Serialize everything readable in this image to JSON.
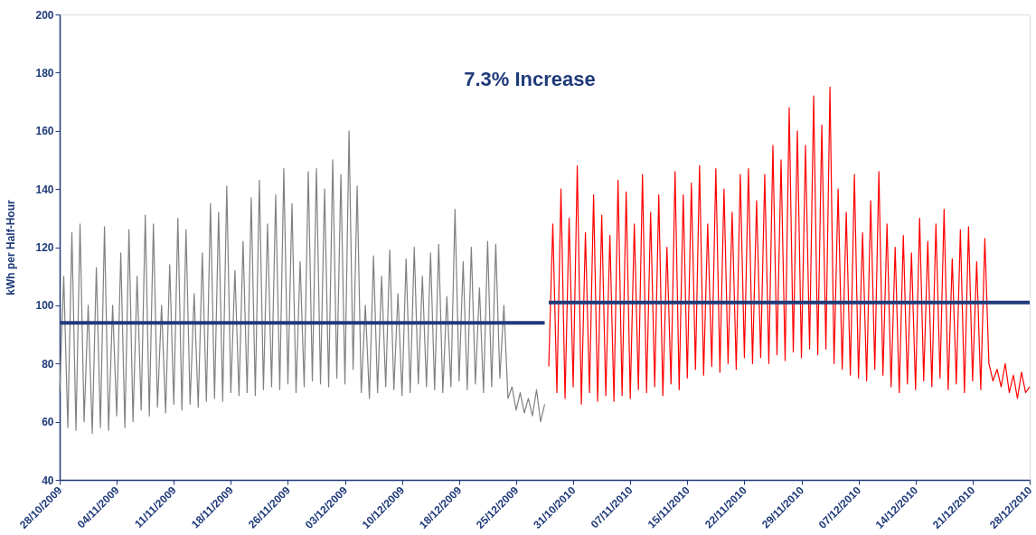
{
  "chart_data": {
    "type": "line",
    "ylabel": "kWh per Half-Hour",
    "annotations": [
      "7.3% Increase"
    ],
    "categories": [
      "28/10/2009",
      null,
      null,
      null,
      null,
      null,
      null,
      null,
      null,
      null,
      null,
      null,
      null,
      null,
      "04/11/2009",
      null,
      null,
      null,
      null,
      null,
      null,
      null,
      null,
      null,
      null,
      null,
      null,
      null,
      "11/11/2009",
      null,
      null,
      null,
      null,
      null,
      null,
      null,
      null,
      null,
      null,
      null,
      null,
      null,
      "18/11/2009",
      null,
      null,
      null,
      null,
      null,
      null,
      null,
      null,
      null,
      null,
      null,
      null,
      null,
      "26/11/2009",
      null,
      null,
      null,
      null,
      null,
      null,
      null,
      null,
      null,
      null,
      null,
      null,
      null,
      "03/12/2009",
      null,
      null,
      null,
      null,
      null,
      null,
      null,
      null,
      null,
      null,
      null,
      null,
      null,
      "10/12/2009",
      null,
      null,
      null,
      null,
      null,
      null,
      null,
      null,
      null,
      null,
      null,
      null,
      null,
      "18/12/2009",
      null,
      null,
      null,
      null,
      null,
      null,
      null,
      null,
      null,
      null,
      null,
      null,
      null,
      "25/12/2009",
      null,
      null,
      null,
      null,
      null,
      null,
      null,
      null,
      null,
      null,
      null,
      null,
      null,
      "31/10/2010",
      null,
      null,
      null,
      null,
      null,
      null,
      null,
      null,
      null,
      null,
      null,
      null,
      null,
      "07/11/2010",
      null,
      null,
      null,
      null,
      null,
      null,
      null,
      null,
      null,
      null,
      null,
      null,
      null,
      "15/11/2010",
      null,
      null,
      null,
      null,
      null,
      null,
      null,
      null,
      null,
      null,
      null,
      null,
      null,
      "22/11/2010",
      null,
      null,
      null,
      null,
      null,
      null,
      null,
      null,
      null,
      null,
      null,
      null,
      null,
      "29/11/2010",
      null,
      null,
      null,
      null,
      null,
      null,
      null,
      null,
      null,
      null,
      null,
      null,
      null,
      "07/12/2010",
      null,
      null,
      null,
      null,
      null,
      null,
      null,
      null,
      null,
      null,
      null,
      null,
      null,
      "14/12/2010",
      null,
      null,
      null,
      null,
      null,
      null,
      null,
      null,
      null,
      null,
      null,
      null,
      null,
      "21/12/2010",
      null,
      null,
      null,
      null,
      null,
      null,
      null,
      null,
      null,
      null,
      null,
      null,
      null,
      "28/12/2010"
    ],
    "series": [
      {
        "color": "#808080",
        "values": [
          70,
          110,
          58,
          125,
          57,
          128,
          60,
          100,
          56,
          113,
          58,
          127,
          57,
          100,
          62,
          118,
          58,
          126,
          60,
          110,
          64,
          131,
          62,
          128,
          65,
          100,
          63,
          114,
          66,
          130,
          64,
          126,
          66,
          104,
          65,
          118,
          67,
          135,
          68,
          132,
          67,
          141,
          70,
          112,
          69,
          122,
          70,
          137,
          69,
          143,
          71,
          128,
          72,
          138,
          71,
          147,
          73,
          135,
          70,
          115,
          72,
          146,
          74,
          147,
          73,
          140,
          72,
          150,
          75,
          145,
          73,
          160,
          78,
          141,
          70,
          100,
          68,
          117,
          70,
          110,
          72,
          119,
          71,
          104,
          69,
          116,
          70,
          120,
          73,
          110,
          72,
          118,
          71,
          121,
          70,
          103,
          72,
          133,
          74,
          115,
          71,
          120,
          73,
          106,
          70,
          122,
          72,
          121,
          75,
          100,
          68,
          72,
          64,
          70,
          63,
          68,
          62,
          71,
          60,
          66,
          null,
          null,
          null,
          null,
          null,
          null,
          null,
          null,
          null,
          null,
          null,
          null,
          null,
          null,
          null,
          null,
          null,
          null,
          null,
          null,
          null,
          null,
          null,
          null,
          null,
          null,
          null,
          null,
          null,
          null,
          null,
          null,
          null,
          null,
          null,
          null,
          null,
          null,
          null,
          null,
          null,
          null,
          null,
          null,
          null,
          null,
          null,
          null,
          null,
          null,
          null,
          null,
          null,
          null,
          null,
          null,
          null,
          null,
          null,
          null,
          null,
          null,
          null,
          null,
          null,
          null,
          null,
          null,
          null,
          null,
          null,
          null,
          null,
          null,
          null,
          null,
          null,
          null,
          null,
          null,
          null,
          null,
          null,
          null,
          null,
          null,
          null,
          null,
          null,
          null,
          null,
          null,
          null,
          null,
          null,
          null,
          null,
          null,
          null,
          null,
          null,
          null,
          null,
          null,
          null,
          null,
          null,
          null,
          null,
          null,
          null,
          null,
          null,
          null,
          null,
          null,
          null,
          null,
          null
        ]
      },
      {
        "color": "#ff0000",
        "values": [
          null,
          null,
          null,
          null,
          null,
          null,
          null,
          null,
          null,
          null,
          null,
          null,
          null,
          null,
          null,
          null,
          null,
          null,
          null,
          null,
          null,
          null,
          null,
          null,
          null,
          null,
          null,
          null,
          null,
          null,
          null,
          null,
          null,
          null,
          null,
          null,
          null,
          null,
          null,
          null,
          null,
          null,
          null,
          null,
          null,
          null,
          null,
          null,
          null,
          null,
          null,
          null,
          null,
          null,
          null,
          null,
          null,
          null,
          null,
          null,
          null,
          null,
          null,
          null,
          null,
          null,
          null,
          null,
          null,
          null,
          null,
          null,
          null,
          null,
          null,
          null,
          null,
          null,
          null,
          null,
          null,
          null,
          null,
          null,
          null,
          null,
          null,
          null,
          null,
          null,
          null,
          null,
          null,
          null,
          null,
          null,
          null,
          null,
          null,
          null,
          null,
          null,
          null,
          null,
          null,
          null,
          null,
          null,
          null,
          null,
          null,
          null,
          null,
          null,
          null,
          null,
          null,
          null,
          null,
          null,
          79,
          128,
          70,
          140,
          68,
          130,
          72,
          148,
          66,
          125,
          70,
          138,
          67,
          131,
          69,
          124,
          67,
          143,
          69,
          139,
          68,
          128,
          71,
          145,
          70,
          132,
          72,
          138,
          69,
          120,
          73,
          146,
          71,
          138,
          75,
          142,
          78,
          148,
          76,
          128,
          79,
          147,
          77,
          140,
          80,
          132,
          78,
          145,
          82,
          147,
          80,
          136,
          82,
          145,
          80,
          155,
          83,
          150,
          81,
          168,
          84,
          160,
          82,
          155,
          85,
          172,
          83,
          162,
          85,
          175,
          80,
          140,
          78,
          132,
          76,
          145,
          75,
          125,
          74,
          136,
          78,
          146,
          76,
          128,
          72,
          120,
          70,
          124,
          73,
          118,
          71,
          130,
          74,
          122,
          72,
          128,
          75,
          133,
          71,
          116,
          73,
          126,
          70,
          127,
          74,
          115,
          71,
          123,
          80,
          74,
          78,
          72,
          80,
          70,
          76,
          68,
          77,
          70,
          72
        ]
      },
      {
        "color": "#1f3a7a",
        "values": [
          94,
          94,
          94,
          94,
          94,
          94,
          94,
          94,
          94,
          94,
          94,
          94,
          94,
          94,
          94,
          94,
          94,
          94,
          94,
          94,
          94,
          94,
          94,
          94,
          94,
          94,
          94,
          94,
          94,
          94,
          94,
          94,
          94,
          94,
          94,
          94,
          94,
          94,
          94,
          94,
          94,
          94,
          94,
          94,
          94,
          94,
          94,
          94,
          94,
          94,
          94,
          94,
          94,
          94,
          94,
          94,
          94,
          94,
          94,
          94,
          94,
          94,
          94,
          94,
          94,
          94,
          94,
          94,
          94,
          94,
          94,
          94,
          94,
          94,
          94,
          94,
          94,
          94,
          94,
          94,
          94,
          94,
          94,
          94,
          94,
          94,
          94,
          94,
          94,
          94,
          94,
          94,
          94,
          94,
          94,
          94,
          94,
          94,
          94,
          94,
          94,
          94,
          94,
          94,
          94,
          94,
          94,
          94,
          94,
          94,
          94,
          94,
          94,
          94,
          94,
          94,
          94,
          94,
          94,
          94,
          null,
          null,
          null,
          null,
          null,
          null,
          null,
          null,
          null,
          null,
          null,
          null,
          null,
          null,
          null,
          null,
          null,
          null,
          null,
          null,
          null,
          null,
          null,
          null,
          null,
          null,
          null,
          null,
          null,
          null,
          null,
          null,
          null,
          null,
          null,
          null,
          null,
          null,
          null,
          null,
          null,
          null,
          null,
          null,
          null,
          null,
          null,
          null,
          null,
          null,
          null,
          null,
          null,
          null,
          null,
          null,
          null,
          null,
          null,
          null,
          null,
          null,
          null,
          null,
          null,
          null,
          null,
          null,
          null,
          null,
          null,
          null,
          null,
          null,
          null,
          null,
          null,
          null,
          null,
          null,
          null,
          null,
          null,
          null,
          null,
          null,
          null,
          null,
          null,
          null,
          null,
          null,
          null,
          null,
          null,
          null,
          null,
          null,
          null,
          null,
          null,
          null,
          null,
          null,
          null,
          null,
          null,
          null,
          null,
          null,
          null,
          null,
          null,
          null,
          null,
          null,
          null,
          null,
          null
        ]
      },
      {
        "color": "#1f3a7a",
        "values": [
          null,
          null,
          null,
          null,
          null,
          null,
          null,
          null,
          null,
          null,
          null,
          null,
          null,
          null,
          null,
          null,
          null,
          null,
          null,
          null,
          null,
          null,
          null,
          null,
          null,
          null,
          null,
          null,
          null,
          null,
          null,
          null,
          null,
          null,
          null,
          null,
          null,
          null,
          null,
          null,
          null,
          null,
          null,
          null,
          null,
          null,
          null,
          null,
          null,
          null,
          null,
          null,
          null,
          null,
          null,
          null,
          null,
          null,
          null,
          null,
          null,
          null,
          null,
          null,
          null,
          null,
          null,
          null,
          null,
          null,
          null,
          null,
          null,
          null,
          null,
          null,
          null,
          null,
          null,
          null,
          null,
          null,
          null,
          null,
          null,
          null,
          null,
          null,
          null,
          null,
          null,
          null,
          null,
          null,
          null,
          null,
          null,
          null,
          null,
          null,
          null,
          null,
          null,
          null,
          null,
          null,
          null,
          null,
          null,
          null,
          null,
          null,
          null,
          null,
          null,
          null,
          null,
          null,
          null,
          null,
          101,
          101,
          101,
          101,
          101,
          101,
          101,
          101,
          101,
          101,
          101,
          101,
          101,
          101,
          101,
          101,
          101,
          101,
          101,
          101,
          101,
          101,
          101,
          101,
          101,
          101,
          101,
          101,
          101,
          101,
          101,
          101,
          101,
          101,
          101,
          101,
          101,
          101,
          101,
          101,
          101,
          101,
          101,
          101,
          101,
          101,
          101,
          101,
          101,
          101,
          101,
          101,
          101,
          101,
          101,
          101,
          101,
          101,
          101,
          101,
          101,
          101,
          101,
          101,
          101,
          101,
          101,
          101,
          101,
          101,
          101,
          101,
          101,
          101,
          101,
          101,
          101,
          101,
          101,
          101,
          101,
          101,
          101,
          101,
          101,
          101,
          101,
          101,
          101,
          101,
          101,
          101,
          101,
          101,
          101,
          101,
          101,
          101,
          101,
          101,
          101,
          101,
          101,
          101,
          101,
          101,
          101,
          101,
          101,
          101,
          101,
          101,
          101,
          101,
          101,
          101,
          101,
          101,
          101
        ]
      }
    ],
    "ylim": [
      40,
      200
    ],
    "yticks": [
      40,
      60,
      80,
      100,
      120,
      140,
      160,
      180,
      200
    ],
    "grid": false
  }
}
